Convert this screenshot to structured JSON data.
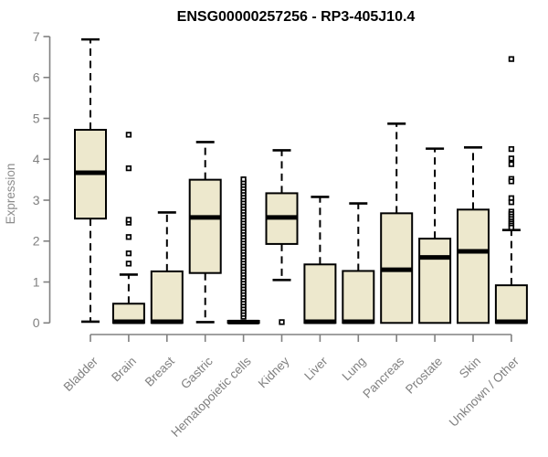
{
  "title": "ENSG00000257256 - RP3-405J10.4",
  "chart_data": {
    "type": "boxplot",
    "title": "ENSG00000257256 - RP3-405J10.4",
    "xlabel": "",
    "ylabel": "Expression",
    "ylim": [
      0,
      7
    ],
    "yticks": [
      0,
      1,
      2,
      3,
      4,
      5,
      6,
      7
    ],
    "grid": "off",
    "legend": "none",
    "box_fill_color": "#EDE8CD",
    "box_stroke_color": "#000000",
    "axis_color": "#808080",
    "tick_label_color": "#808080",
    "title_color": "#000000",
    "categories": [
      "Bladder",
      "Brain",
      "Breast",
      "Gastric",
      "Hematopoietic cells",
      "Kidney",
      "Liver",
      "Lung",
      "Pancreas",
      "Prostate",
      "Skin",
      "Unknown / Other"
    ],
    "series": [
      {
        "category": "Bladder",
        "whisker_low": 0.03,
        "q1": 2.55,
        "median": 3.67,
        "q3": 4.72,
        "whisker_high": 6.93,
        "outliers": []
      },
      {
        "category": "Brain",
        "whisker_low": 0.0,
        "q1": 0.0,
        "median": 0.03,
        "q3": 0.47,
        "whisker_high": 1.18,
        "outliers": [
          1.45,
          1.7,
          2.1,
          2.45,
          2.52,
          3.78,
          4.6
        ]
      },
      {
        "category": "Breast",
        "whisker_low": 0.0,
        "q1": 0.0,
        "median": 0.03,
        "q3": 1.26,
        "whisker_high": 2.7,
        "outliers": []
      },
      {
        "category": "Gastric",
        "whisker_low": 0.02,
        "q1": 1.22,
        "median": 2.58,
        "q3": 3.5,
        "whisker_high": 4.42,
        "outliers": []
      },
      {
        "category": "Hematopoietic cells",
        "whisker_low": 0.0,
        "q1": 0.0,
        "median": 0.02,
        "q3": 0.05,
        "whisker_high": 0.05,
        "outliers": [
          0.15,
          0.22,
          0.29,
          0.36,
          0.43,
          0.5,
          0.57,
          0.64,
          0.71,
          0.78,
          0.85,
          0.92,
          0.99,
          1.06,
          1.13,
          1.2,
          1.27,
          1.34,
          1.41,
          1.48,
          1.55,
          1.62,
          1.69,
          1.76,
          1.83,
          1.9,
          1.97,
          2.04,
          2.11,
          2.18,
          2.25,
          2.32,
          2.39,
          2.46,
          2.53,
          2.6,
          2.67,
          2.74,
          2.81,
          2.88,
          2.95,
          3.02,
          3.09,
          3.16,
          3.23,
          3.3,
          3.37,
          3.44,
          3.51
        ]
      },
      {
        "category": "Kidney",
        "whisker_low": 1.05,
        "q1": 1.93,
        "median": 2.58,
        "q3": 3.17,
        "whisker_high": 4.22,
        "outliers": [
          0.02
        ]
      },
      {
        "category": "Liver",
        "whisker_low": 0.0,
        "q1": 0.0,
        "median": 0.03,
        "q3": 1.43,
        "whisker_high": 3.08,
        "outliers": []
      },
      {
        "category": "Lung",
        "whisker_low": 0.0,
        "q1": 0.0,
        "median": 0.03,
        "q3": 1.27,
        "whisker_high": 2.92,
        "outliers": []
      },
      {
        "category": "Pancreas",
        "whisker_low": 0.0,
        "q1": 0.0,
        "median": 1.3,
        "q3": 2.68,
        "whisker_high": 4.87,
        "outliers": []
      },
      {
        "category": "Prostate",
        "whisker_low": 0.0,
        "q1": 0.0,
        "median": 1.6,
        "q3": 2.06,
        "whisker_high": 4.26,
        "outliers": []
      },
      {
        "category": "Skin",
        "whisker_low": 0.0,
        "q1": 0.0,
        "median": 1.75,
        "q3": 2.77,
        "whisker_high": 4.29,
        "outliers": []
      },
      {
        "category": "Unknown / Other",
        "whisker_low": 0.0,
        "q1": 0.0,
        "median": 0.03,
        "q3": 0.92,
        "whisker_high": 2.27,
        "outliers": [
          6.45,
          4.25,
          4.02,
          3.88,
          3.52,
          3.46,
          3.05,
          2.95,
          2.72,
          2.66,
          2.6,
          2.54,
          2.48,
          2.43,
          2.38,
          2.33
        ]
      }
    ]
  }
}
